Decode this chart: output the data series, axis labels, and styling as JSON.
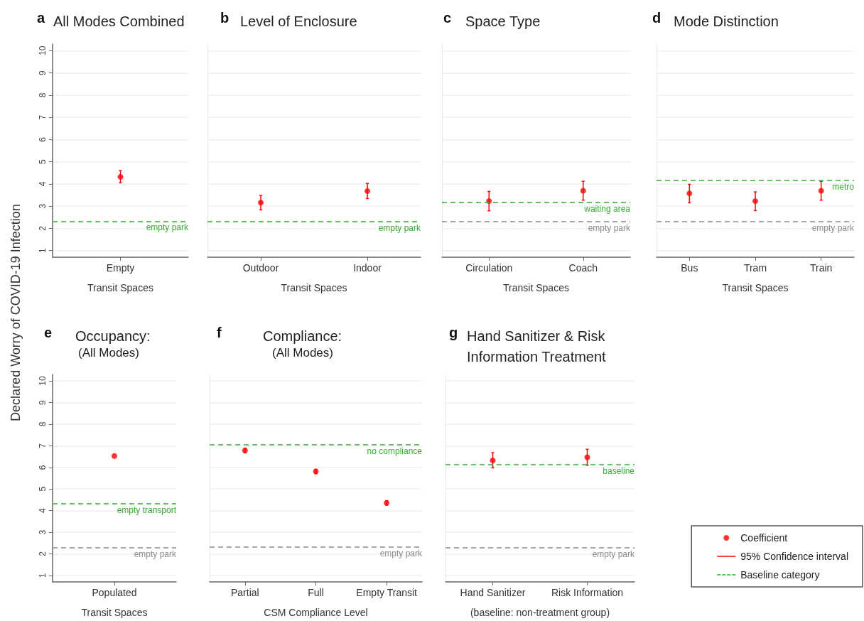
{
  "chart_data": [
    {
      "type": "scatter",
      "title": "a All Modes Combined",
      "ylabel": "Declared Worry of COVID-19 Infection",
      "xlabel": "Transit Spaces",
      "categories": [
        "Empty"
      ],
      "series": [
        {
          "color": "#ff0000",
          "values": [
            4.32
          ],
          "errors": [
            [
              4.05,
              4.6
            ]
          ]
        }
      ],
      "ylim": [
        0.7,
        10.3
      ],
      "yticks": [
        1,
        2,
        3,
        4,
        5,
        6,
        7,
        8,
        9,
        10
      ],
      "grid": "y",
      "marker": "circle",
      "ref_lines": [
        {
          "axis": "y",
          "value": 2.32,
          "label": "empty park",
          "color": "#3aaa35",
          "line_style": "dashed"
        }
      ]
    },
    {
      "type": "scatter",
      "title": "b Level of Enclosure",
      "xlabel": "Transit Spaces",
      "categories": [
        "Outdoor",
        "Indoor"
      ],
      "series": [
        {
          "color": "#ff0000",
          "values": [
            3.16,
            3.68
          ],
          "errors": [
            [
              2.83,
              3.48
            ],
            [
              3.34,
              4.02
            ]
          ]
        }
      ],
      "ylim": [
        0.7,
        10.3
      ],
      "yticks": [
        1,
        2,
        3,
        4,
        5,
        6,
        7,
        8,
        9,
        10
      ],
      "grid": "y",
      "marker": "circle",
      "tick_labels": "x",
      "ref_lines": [
        {
          "axis": "y",
          "value": 2.31,
          "label": "empty park",
          "color": "#3aaa35",
          "line_style": "dashed"
        }
      ]
    },
    {
      "type": "scatter",
      "title": "c Space Type",
      "xlabel": "Transit Spaces",
      "categories": [
        "Circulation",
        "Coach"
      ],
      "series": [
        {
          "color": "#ff0000",
          "values": [
            3.23,
            3.69
          ],
          "errors": [
            [
              2.79,
              3.66
            ],
            [
              3.27,
              4.12
            ]
          ]
        }
      ],
      "ylim": [
        0.7,
        10.3
      ],
      "yticks": [
        1,
        2,
        3,
        4,
        5,
        6,
        7,
        8,
        9,
        10
      ],
      "grid": "y",
      "marker": "circle",
      "tick_labels": "x",
      "ref_lines": [
        {
          "axis": "y",
          "value": 3.18,
          "label": "waiting area",
          "color": "#3aaa35",
          "line_style": "dashed"
        },
        {
          "axis": "y",
          "value": 2.3,
          "label": "empty park",
          "color": "#8c8c8c",
          "line_style": "dashed"
        }
      ]
    },
    {
      "type": "scatter",
      "title": "d Mode Distinction",
      "xlabel": "Transit Spaces",
      "categories": [
        "Bus",
        "Tram",
        "Train"
      ],
      "series": [
        {
          "color": "#ff0000",
          "values": [
            3.57,
            3.23,
            3.69
          ],
          "errors": [
            [
              3.15,
              3.98
            ],
            [
              2.8,
              3.64
            ],
            [
              3.27,
              4.11
            ]
          ]
        }
      ],
      "ylim": [
        0.7,
        10.3
      ],
      "yticks": [
        1,
        2,
        3,
        4,
        5,
        6,
        7,
        8,
        9,
        10
      ],
      "grid": "y",
      "marker": "circle",
      "tick_labels": "x",
      "ref_lines": [
        {
          "axis": "y",
          "value": 4.16,
          "label": "metro",
          "color": "#3aaa35",
          "line_style": "dashed"
        },
        {
          "axis": "y",
          "value": 2.3,
          "label": "empty park",
          "color": "#8c8c8c",
          "line_style": "dashed"
        }
      ]
    },
    {
      "type": "scatter",
      "title": "e Occupancy:",
      "subtitle": "(All Modes)",
      "xlabel": "Transit Spaces",
      "categories": [
        "Populated"
      ],
      "series": [
        {
          "color": "#ff0000",
          "values": [
            6.53
          ]
        }
      ],
      "ylim": [
        0.7,
        10.3
      ],
      "yticks": [
        1,
        2,
        3,
        4,
        5,
        6,
        7,
        8,
        9,
        10
      ],
      "grid": "y",
      "marker": "circle",
      "ref_lines": [
        {
          "axis": "y",
          "value": 4.33,
          "label": "empty transport",
          "color": "#3aaa35",
          "line_style": "dashed"
        },
        {
          "axis": "y",
          "value": 2.28,
          "label": "empty park",
          "color": "#8c8c8c",
          "line_style": "dashed"
        }
      ]
    },
    {
      "type": "scatter",
      "title": "f Compliance:",
      "subtitle": "(All Modes)",
      "xlabel": "CSM Compliance Level",
      "categories": [
        "Partial",
        "Full",
        "Empty Transit"
      ],
      "series": [
        {
          "color": "#ff0000",
          "values": [
            6.78,
            5.81,
            4.36
          ],
          "errors": [
            [
              6.68,
              6.88
            ],
            [
              5.71,
              5.91
            ],
            [
              4.26,
              4.46
            ]
          ]
        }
      ],
      "ylim": [
        0.7,
        10.3
      ],
      "yticks": [
        1,
        2,
        3,
        4,
        5,
        6,
        7,
        8,
        9,
        10
      ],
      "grid": "y",
      "marker": "circle",
      "tick_labels": "x",
      "ref_lines": [
        {
          "axis": "y",
          "value": 7.04,
          "label": "no compliance",
          "color": "#3aaa35",
          "line_style": "dashed"
        },
        {
          "axis": "y",
          "value": 2.32,
          "label": "empty park",
          "color": "#8c8c8c",
          "line_style": "dashed"
        }
      ]
    },
    {
      "type": "scatter",
      "title": "g Hand Sanitizer & Risk Information Treatment",
      "xlabel": "(baseline: non-treatment group)",
      "categories": [
        "Hand Sanitizer",
        "Risk Information"
      ],
      "series": [
        {
          "name": "Coefficient",
          "color": "#ff0000",
          "values": [
            6.32,
            6.47
          ],
          "errors": [
            [
              5.98,
              6.68
            ],
            [
              6.1,
              6.84
            ]
          ]
        }
      ],
      "ylim": [
        0.7,
        10.3
      ],
      "yticks": [
        1,
        2,
        3,
        4,
        5,
        6,
        7,
        8,
        9,
        10
      ],
      "grid": "y",
      "marker": "circle",
      "tick_labels": "x",
      "legend": "bottom right",
      "annotations": [
        "95% Confidence interval",
        "Baseline category"
      ],
      "ref_lines": [
        {
          "axis": "y",
          "value": 6.14,
          "label": "baseline",
          "color": "#3aaa35",
          "line_style": "dashed"
        },
        {
          "axis": "y",
          "value": 2.29,
          "label": "empty park",
          "color": "#8c8c8c",
          "line_style": "dashed"
        }
      ]
    }
  ]
}
